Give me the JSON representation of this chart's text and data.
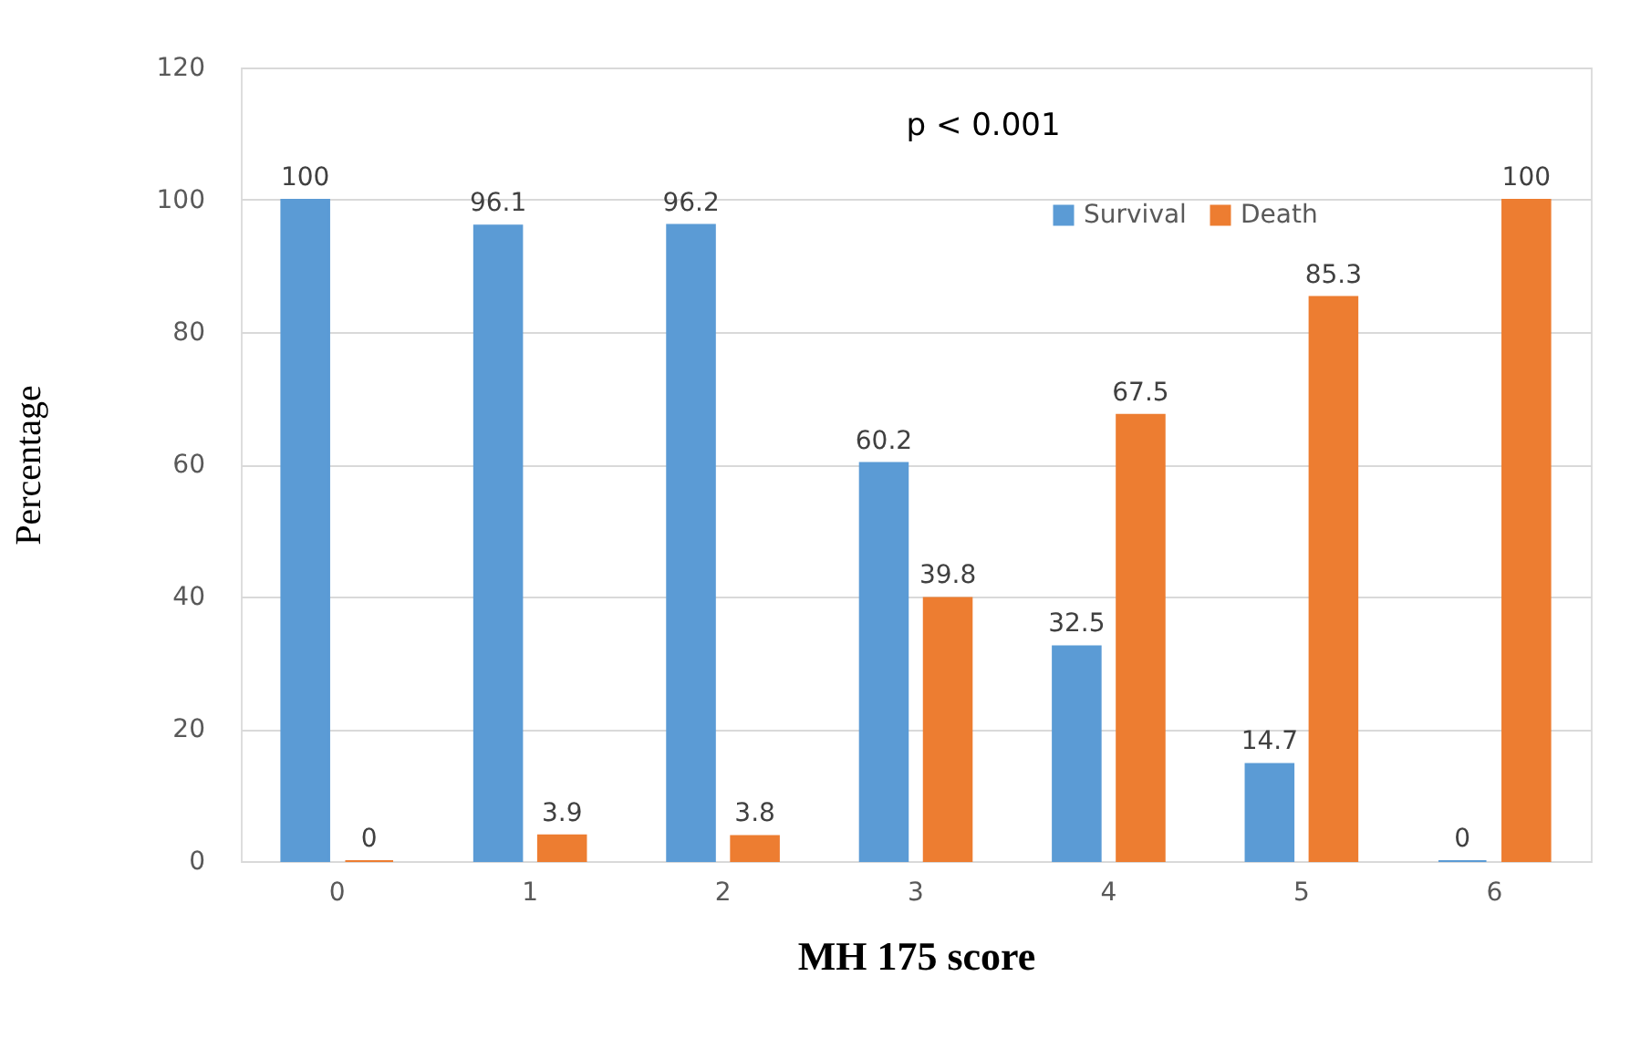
{
  "chart_data": {
    "type": "bar",
    "xlabel": "MH 175 score",
    "ylabel": "Percentage",
    "categories": [
      "0",
      "1",
      "2",
      "3",
      "4",
      "5",
      "6"
    ],
    "series": [
      {
        "name": "Survival",
        "color": "#5b9bd5",
        "values": [
          100,
          96.1,
          96.2,
          60.2,
          32.5,
          14.7,
          0
        ]
      },
      {
        "name": "Death",
        "color": "#ed7d31",
        "values": [
          0,
          3.9,
          3.8,
          39.8,
          67.5,
          85.3,
          100
        ]
      }
    ],
    "ylim": [
      0,
      120
    ],
    "yticks": [
      0,
      20,
      40,
      60,
      80,
      100,
      120
    ],
    "grid": "y",
    "legend": "top right",
    "data_labels": true,
    "annotations": [
      "p < 0.001"
    ]
  }
}
